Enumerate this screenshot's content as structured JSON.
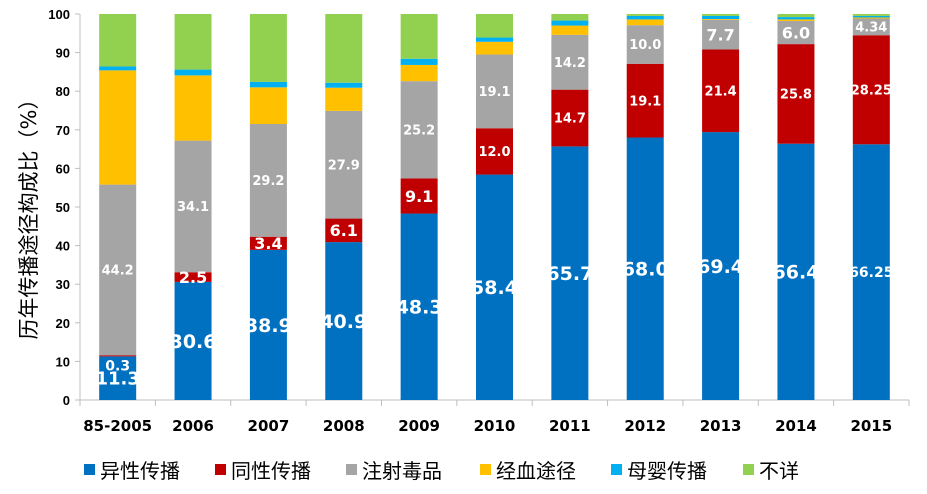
{
  "chart_data": {
    "type": "bar",
    "stacked": true,
    "title": "",
    "xlabel": "",
    "ylabel": "历年传播途径构成比（%）",
    "ylim": [
      0,
      100
    ],
    "yticks": [
      0,
      10,
      20,
      30,
      40,
      50,
      60,
      70,
      80,
      90,
      100
    ],
    "grid": false,
    "legend_position": "bottom",
    "categories": [
      "85-2005",
      "2006",
      "2007",
      "2008",
      "2009",
      "2010",
      "2011",
      "2012",
      "2013",
      "2014",
      "2015"
    ],
    "series": [
      {
        "name": "异性传播",
        "color": "#0070C0",
        "values": [
          11.3,
          30.6,
          38.9,
          40.9,
          48.3,
          58.4,
          65.7,
          68.0,
          69.4,
          66.4,
          66.25
        ],
        "labels": [
          "11.3",
          "30.6",
          "38.9",
          "40.9",
          "48.3",
          "58.4",
          "65.7",
          "68.0",
          "69.4",
          "66.4",
          "66.25"
        ]
      },
      {
        "name": "同性传播",
        "color": "#C00000",
        "values": [
          0.3,
          2.5,
          3.4,
          6.1,
          9.1,
          12.0,
          14.7,
          19.1,
          21.4,
          25.8,
          28.25
        ],
        "labels": [
          "0.3",
          "2.5",
          "3.4",
          "6.1",
          "9.1",
          "12.0",
          "14.7",
          "19.1",
          "21.4",
          "25.8",
          "28.25"
        ]
      },
      {
        "name": "注射毒品",
        "color": "#A5A5A5",
        "values": [
          44.2,
          34.1,
          29.2,
          27.9,
          25.2,
          19.1,
          14.2,
          10.0,
          7.7,
          6.0,
          4.34
        ],
        "labels": [
          "44.2",
          "34.1",
          "29.2",
          "27.9",
          "25.2",
          "19.1",
          "14.2",
          "10.0",
          "7.7",
          "6.0",
          "4.34"
        ]
      },
      {
        "name": "经血途径",
        "color": "#FFC000",
        "values": [
          29.6,
          16.9,
          9.5,
          6.0,
          4.2,
          3.3,
          2.4,
          1.5,
          0.2,
          0.4,
          0.26
        ],
        "labels": []
      },
      {
        "name": "母婴传播",
        "color": "#00B0F0",
        "values": [
          1.0,
          1.5,
          1.4,
          1.3,
          1.6,
          1.1,
          1.3,
          0.9,
          0.8,
          0.6,
          0.4
        ],
        "labels": []
      },
      {
        "name": "不详",
        "color": "#92D050",
        "values": [
          13.6,
          14.4,
          17.6,
          17.8,
          11.6,
          6.1,
          1.7,
          0.5,
          0.5,
          0.8,
          0.5
        ],
        "labels": []
      }
    ]
  },
  "legend": {
    "items": [
      {
        "label": "异性传播",
        "color": "#0070C0"
      },
      {
        "label": "同性传播",
        "color": "#C00000"
      },
      {
        "label": "注射毒品",
        "color": "#A5A5A5"
      },
      {
        "label": "经血途径",
        "color": "#FFC000"
      },
      {
        "label": "母婴传播",
        "color": "#00B0F0"
      },
      {
        "label": "不详",
        "color": "#92D050"
      }
    ]
  }
}
